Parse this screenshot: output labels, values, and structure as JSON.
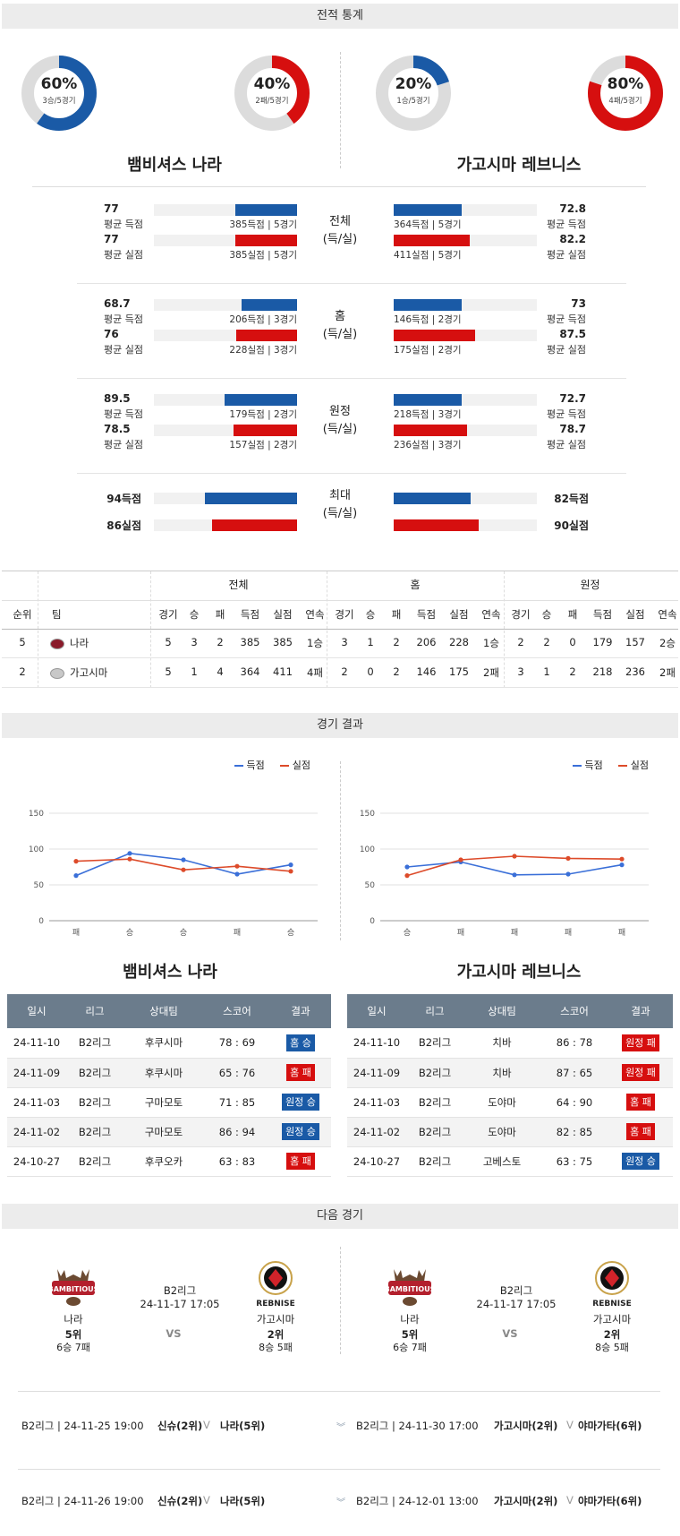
{
  "sections": {
    "stats": "전적 통계",
    "results": "경기 결과",
    "next": "다음 경기"
  },
  "donuts": [
    {
      "pct": "60%",
      "sub": "3승/5경기",
      "color": "#1a5aa6",
      "value": 0.6
    },
    {
      "pct": "40%",
      "sub": "2패/5경기",
      "color": "#d60f0f",
      "value": 0.4
    },
    {
      "pct": "20%",
      "sub": "1승/5경기",
      "color": "#1a5aa6",
      "value": 0.2
    },
    {
      "pct": "80%",
      "sub": "4패/5경기",
      "color": "#d60f0f",
      "value": 0.8
    }
  ],
  "teams": {
    "left": "뱀비셔스 나라",
    "right": "가고시마 레브니스"
  },
  "compare": [
    {
      "center": [
        "전체",
        "(득/실)"
      ],
      "left": [
        {
          "num": "77",
          "lbl": "평균 득점",
          "txt": "385득점 | 5경기",
          "color": "blue",
          "ratio": 0.77
        },
        {
          "num": "77",
          "lbl": "평균 실점",
          "txt": "385실점 | 5경기",
          "color": "red",
          "ratio": 0.77
        }
      ],
      "right": [
        {
          "num": "72.8",
          "lbl": "평균 득점",
          "txt": "364득점 | 5경기",
          "color": "blue",
          "ratio": 0.728
        },
        {
          "num": "82.2",
          "lbl": "평균 실점",
          "txt": "411실점 | 5경기",
          "color": "red",
          "ratio": 0.822
        }
      ]
    },
    {
      "center": [
        "홈",
        "(득/실)"
      ],
      "left": [
        {
          "num": "68.7",
          "lbl": "평균 득점",
          "txt": "206득점 | 3경기",
          "color": "blue",
          "ratio": 0.687
        },
        {
          "num": "76",
          "lbl": "평균 실점",
          "txt": "228실점 | 3경기",
          "color": "red",
          "ratio": 0.76
        }
      ],
      "right": [
        {
          "num": "73",
          "lbl": "평균 득점",
          "txt": "146득점 | 2경기",
          "color": "blue",
          "ratio": 0.73
        },
        {
          "num": "87.5",
          "lbl": "평균 실점",
          "txt": "175실점 | 2경기",
          "color": "red",
          "ratio": 0.875
        }
      ]
    },
    {
      "center": [
        "원정",
        "(득/실)"
      ],
      "left": [
        {
          "num": "89.5",
          "lbl": "평균 득점",
          "txt": "179득점 | 2경기",
          "color": "blue",
          "ratio": 0.895
        },
        {
          "num": "78.5",
          "lbl": "평균 실점",
          "txt": "157실점 | 2경기",
          "color": "red",
          "ratio": 0.785
        }
      ],
      "right": [
        {
          "num": "72.7",
          "lbl": "평균 득점",
          "txt": "218득점 | 3경기",
          "color": "blue",
          "ratio": 0.727
        },
        {
          "num": "78.7",
          "lbl": "평균 실점",
          "txt": "236실점 | 3경기",
          "color": "red",
          "ratio": 0.787
        }
      ]
    }
  ],
  "maxrow": {
    "center": [
      "최대",
      "(득/실)"
    ],
    "left": [
      {
        "num": "94득점",
        "color": "blue",
        "ratio": 0.94
      },
      {
        "num": "86실점",
        "color": "red",
        "ratio": 0.86
      }
    ],
    "right": [
      {
        "num": "82득점",
        "color": "blue",
        "ratio": 0.82
      },
      {
        "num": "90실점",
        "color": "red",
        "ratio": 0.9
      }
    ]
  },
  "standings": {
    "groups": [
      "전체",
      "홈",
      "원정"
    ],
    "headers": [
      "순위",
      "팀",
      "경기",
      "승",
      "패",
      "득점",
      "실점",
      "연속",
      "경기",
      "승",
      "패",
      "득점",
      "실점",
      "연속",
      "경기",
      "승",
      "패",
      "득점",
      "실점",
      "연속"
    ],
    "rows": [
      [
        "5",
        "나라",
        "5",
        "3",
        "2",
        "385",
        "385",
        "1승",
        "3",
        "1",
        "2",
        "206",
        "228",
        "1승",
        "2",
        "2",
        "0",
        "179",
        "157",
        "2승"
      ],
      [
        "2",
        "가고시마",
        "5",
        "1",
        "4",
        "364",
        "411",
        "4패",
        "2",
        "0",
        "2",
        "146",
        "175",
        "2패",
        "3",
        "1",
        "2",
        "218",
        "236",
        "2패"
      ]
    ]
  },
  "legend": {
    "score": "득점",
    "conceded": "실점"
  },
  "chart_data": [
    {
      "type": "line",
      "categories": [
        "패",
        "승",
        "승",
        "패",
        "승"
      ],
      "ylim": [
        0,
        150
      ],
      "yticks": [
        0,
        50,
        100,
        150
      ],
      "grid": true,
      "legend": "top-right",
      "series": [
        {
          "name": "득점",
          "color": "#3a6fd8",
          "values": [
            63,
            94,
            85,
            65,
            78
          ]
        },
        {
          "name": "실점",
          "color": "#dd4b2a",
          "values": [
            83,
            86,
            71,
            76,
            69
          ]
        }
      ]
    },
    {
      "type": "line",
      "categories": [
        "승",
        "패",
        "패",
        "패",
        "패"
      ],
      "ylim": [
        0,
        150
      ],
      "yticks": [
        0,
        50,
        100,
        150
      ],
      "grid": true,
      "legend": "top-right",
      "series": [
        {
          "name": "득점",
          "color": "#3a6fd8",
          "values": [
            75,
            82,
            64,
            65,
            78
          ]
        },
        {
          "name": "실점",
          "color": "#dd4b2a",
          "values": [
            63,
            85,
            90,
            87,
            86
          ]
        }
      ]
    }
  ],
  "results": {
    "headers": [
      "일시",
      "리그",
      "상대팀",
      "스코어",
      "결과"
    ],
    "left": [
      [
        "24-11-10",
        "B2리그",
        "후쿠시마",
        "78 : 69",
        "홈 승",
        "blue"
      ],
      [
        "24-11-09",
        "B2리그",
        "후쿠시마",
        "65 : 76",
        "홈 패",
        "red"
      ],
      [
        "24-11-03",
        "B2리그",
        "구마모토",
        "71 : 85",
        "원정 승",
        "blue"
      ],
      [
        "24-11-02",
        "B2리그",
        "구마모토",
        "86 : 94",
        "원정 승",
        "blue"
      ],
      [
        "24-10-27",
        "B2리그",
        "후쿠오카",
        "63 : 83",
        "홈 패",
        "red"
      ]
    ],
    "right": [
      [
        "24-11-10",
        "B2리그",
        "치바",
        "86 : 78",
        "원정 패",
        "red"
      ],
      [
        "24-11-09",
        "B2리그",
        "치바",
        "87 : 65",
        "원정 패",
        "red"
      ],
      [
        "24-11-03",
        "B2리그",
        "도야마",
        "64 : 90",
        "홈 패",
        "red"
      ],
      [
        "24-11-02",
        "B2리그",
        "도야마",
        "82 : 85",
        "홈 패",
        "red"
      ],
      [
        "24-10-27",
        "B2리그",
        "고베스토",
        "63 : 75",
        "원정 승",
        "blue"
      ]
    ]
  },
  "next": {
    "league": "B2리그",
    "datetime": "24-11-17 17:05",
    "vs": "VS",
    "home": {
      "name": "나라",
      "rank": "5위",
      "record": "6승 7패",
      "logo_text": "BAMBITIOUS"
    },
    "away": {
      "name": "가고시마",
      "rank": "2위",
      "record": "8승 5패",
      "logo_text": "REBNISE"
    }
  },
  "schedule": {
    "left": [
      {
        "info": "B2리그 | 24-11-25 19:00",
        "home": "신슈(2위)",
        "away": "나라(5위)"
      },
      {
        "info": "B2리그 | 24-11-26 19:00",
        "home": "신슈(2위)",
        "away": "나라(5위)"
      }
    ],
    "right": [
      {
        "info": "B2리그 | 24-11-30 17:00",
        "home": "가고시마(2위)",
        "away": "야마가타(6위)"
      },
      {
        "info": "B2리그 | 24-12-01 13:00",
        "home": "가고시마(2위)",
        "away": "야마가타(6위)"
      }
    ]
  }
}
